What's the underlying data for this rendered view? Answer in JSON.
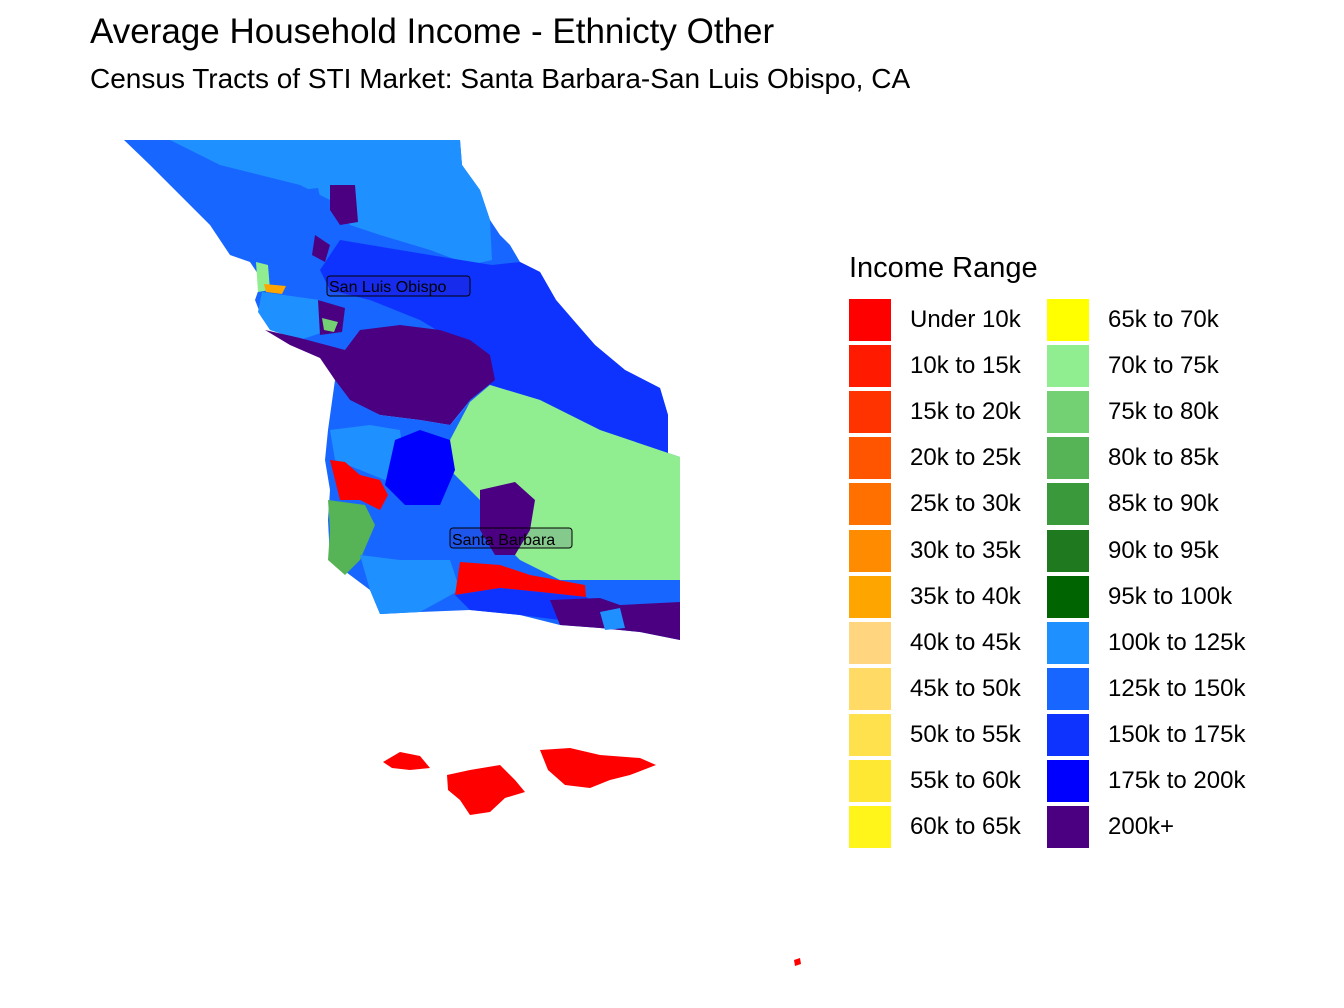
{
  "title": "Average Household Income - Ethnicty Other",
  "subtitle": "Census Tracts of STI Market: Santa Barbara-San Luis Obispo, CA",
  "legend": {
    "title": "Income Range",
    "items": [
      {
        "label": "Under 10k",
        "color": "#ff0000"
      },
      {
        "label": "10k to 15k",
        "color": "#ff1a00"
      },
      {
        "label": "15k to 20k",
        "color": "#ff3300"
      },
      {
        "label": "20k to 25k",
        "color": "#ff5500"
      },
      {
        "label": "25k to 30k",
        "color": "#ff7000"
      },
      {
        "label": "30k to 35k",
        "color": "#ff8c00"
      },
      {
        "label": "35k to 40k",
        "color": "#ffa500"
      },
      {
        "label": "40k to 45k",
        "color": "#ffd580"
      },
      {
        "label": "45k to 50k",
        "color": "#ffdb66"
      },
      {
        "label": "50k to 55k",
        "color": "#ffe14d"
      },
      {
        "label": "55k to 60k",
        "color": "#ffe833"
      },
      {
        "label": "60k to 65k",
        "color": "#fff51a"
      },
      {
        "label": "65k to 70k",
        "color": "#ffff00"
      },
      {
        "label": "70k to 75k",
        "color": "#90ee90"
      },
      {
        "label": "75k to 80k",
        "color": "#73d173"
      },
      {
        "label": "80k to 85k",
        "color": "#56b356"
      },
      {
        "label": "85k to 90k",
        "color": "#3a993a"
      },
      {
        "label": "90k to 95k",
        "color": "#1f7a1f"
      },
      {
        "label": "95k to 100k",
        "color": "#006400"
      },
      {
        "label": "100k to 125k",
        "color": "#1e90ff"
      },
      {
        "label": "125k to 150k",
        "color": "#1766ff"
      },
      {
        "label": "150k to 175k",
        "color": "#0f33ff"
      },
      {
        "label": "175k to 200k",
        "color": "#0000ff"
      },
      {
        "label": "200k+",
        "color": "#4b0082"
      }
    ]
  },
  "cities": [
    {
      "name": "San Luis Obispo"
    },
    {
      "name": "Santa Barbara"
    }
  ]
}
